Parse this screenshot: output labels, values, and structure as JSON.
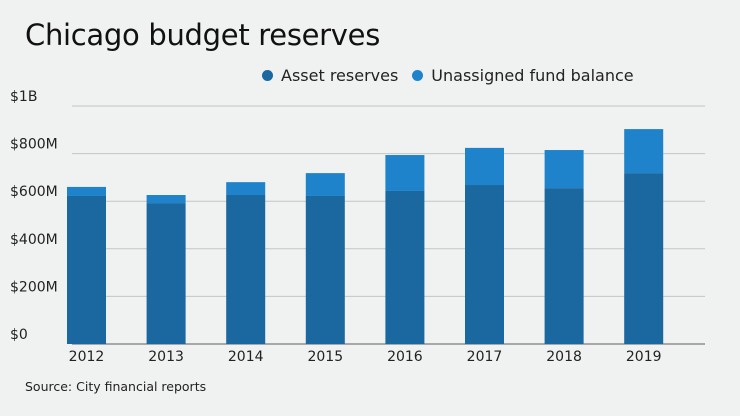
{
  "colors": {
    "background": "#f0f1f1",
    "asset": "#1b67a0",
    "unassigned": "#1e83cb",
    "grid": "#c4c6c7",
    "axis": "#8d8f91"
  },
  "chart_data": {
    "type": "bar",
    "stacked": true,
    "title": "Chicago budget reserves",
    "xlabel": "",
    "ylabel": "",
    "categories": [
      "2012",
      "2013",
      "2014",
      "2015",
      "2016",
      "2017",
      "2018",
      "2019"
    ],
    "series": [
      {
        "name": "Asset reserves",
        "color": "#1b67a0",
        "values": [
          622,
          592,
          626,
          622,
          643,
          668,
          655,
          718
        ]
      },
      {
        "name": "Unassigned fund balance",
        "color": "#1e83cb",
        "values": [
          38,
          34,
          54,
          96,
          151,
          156,
          160,
          185
        ]
      }
    ],
    "units": "millions of dollars",
    "ylim": [
      0,
      1000
    ],
    "yticks": [
      0,
      200,
      400,
      600,
      800,
      1000
    ],
    "ytick_labels": [
      "$0",
      "$200M",
      "$400M",
      "$600M",
      "$800M",
      "$1B"
    ],
    "grid": true,
    "legend_position": "top-right",
    "source": "Source: City financial reports"
  }
}
